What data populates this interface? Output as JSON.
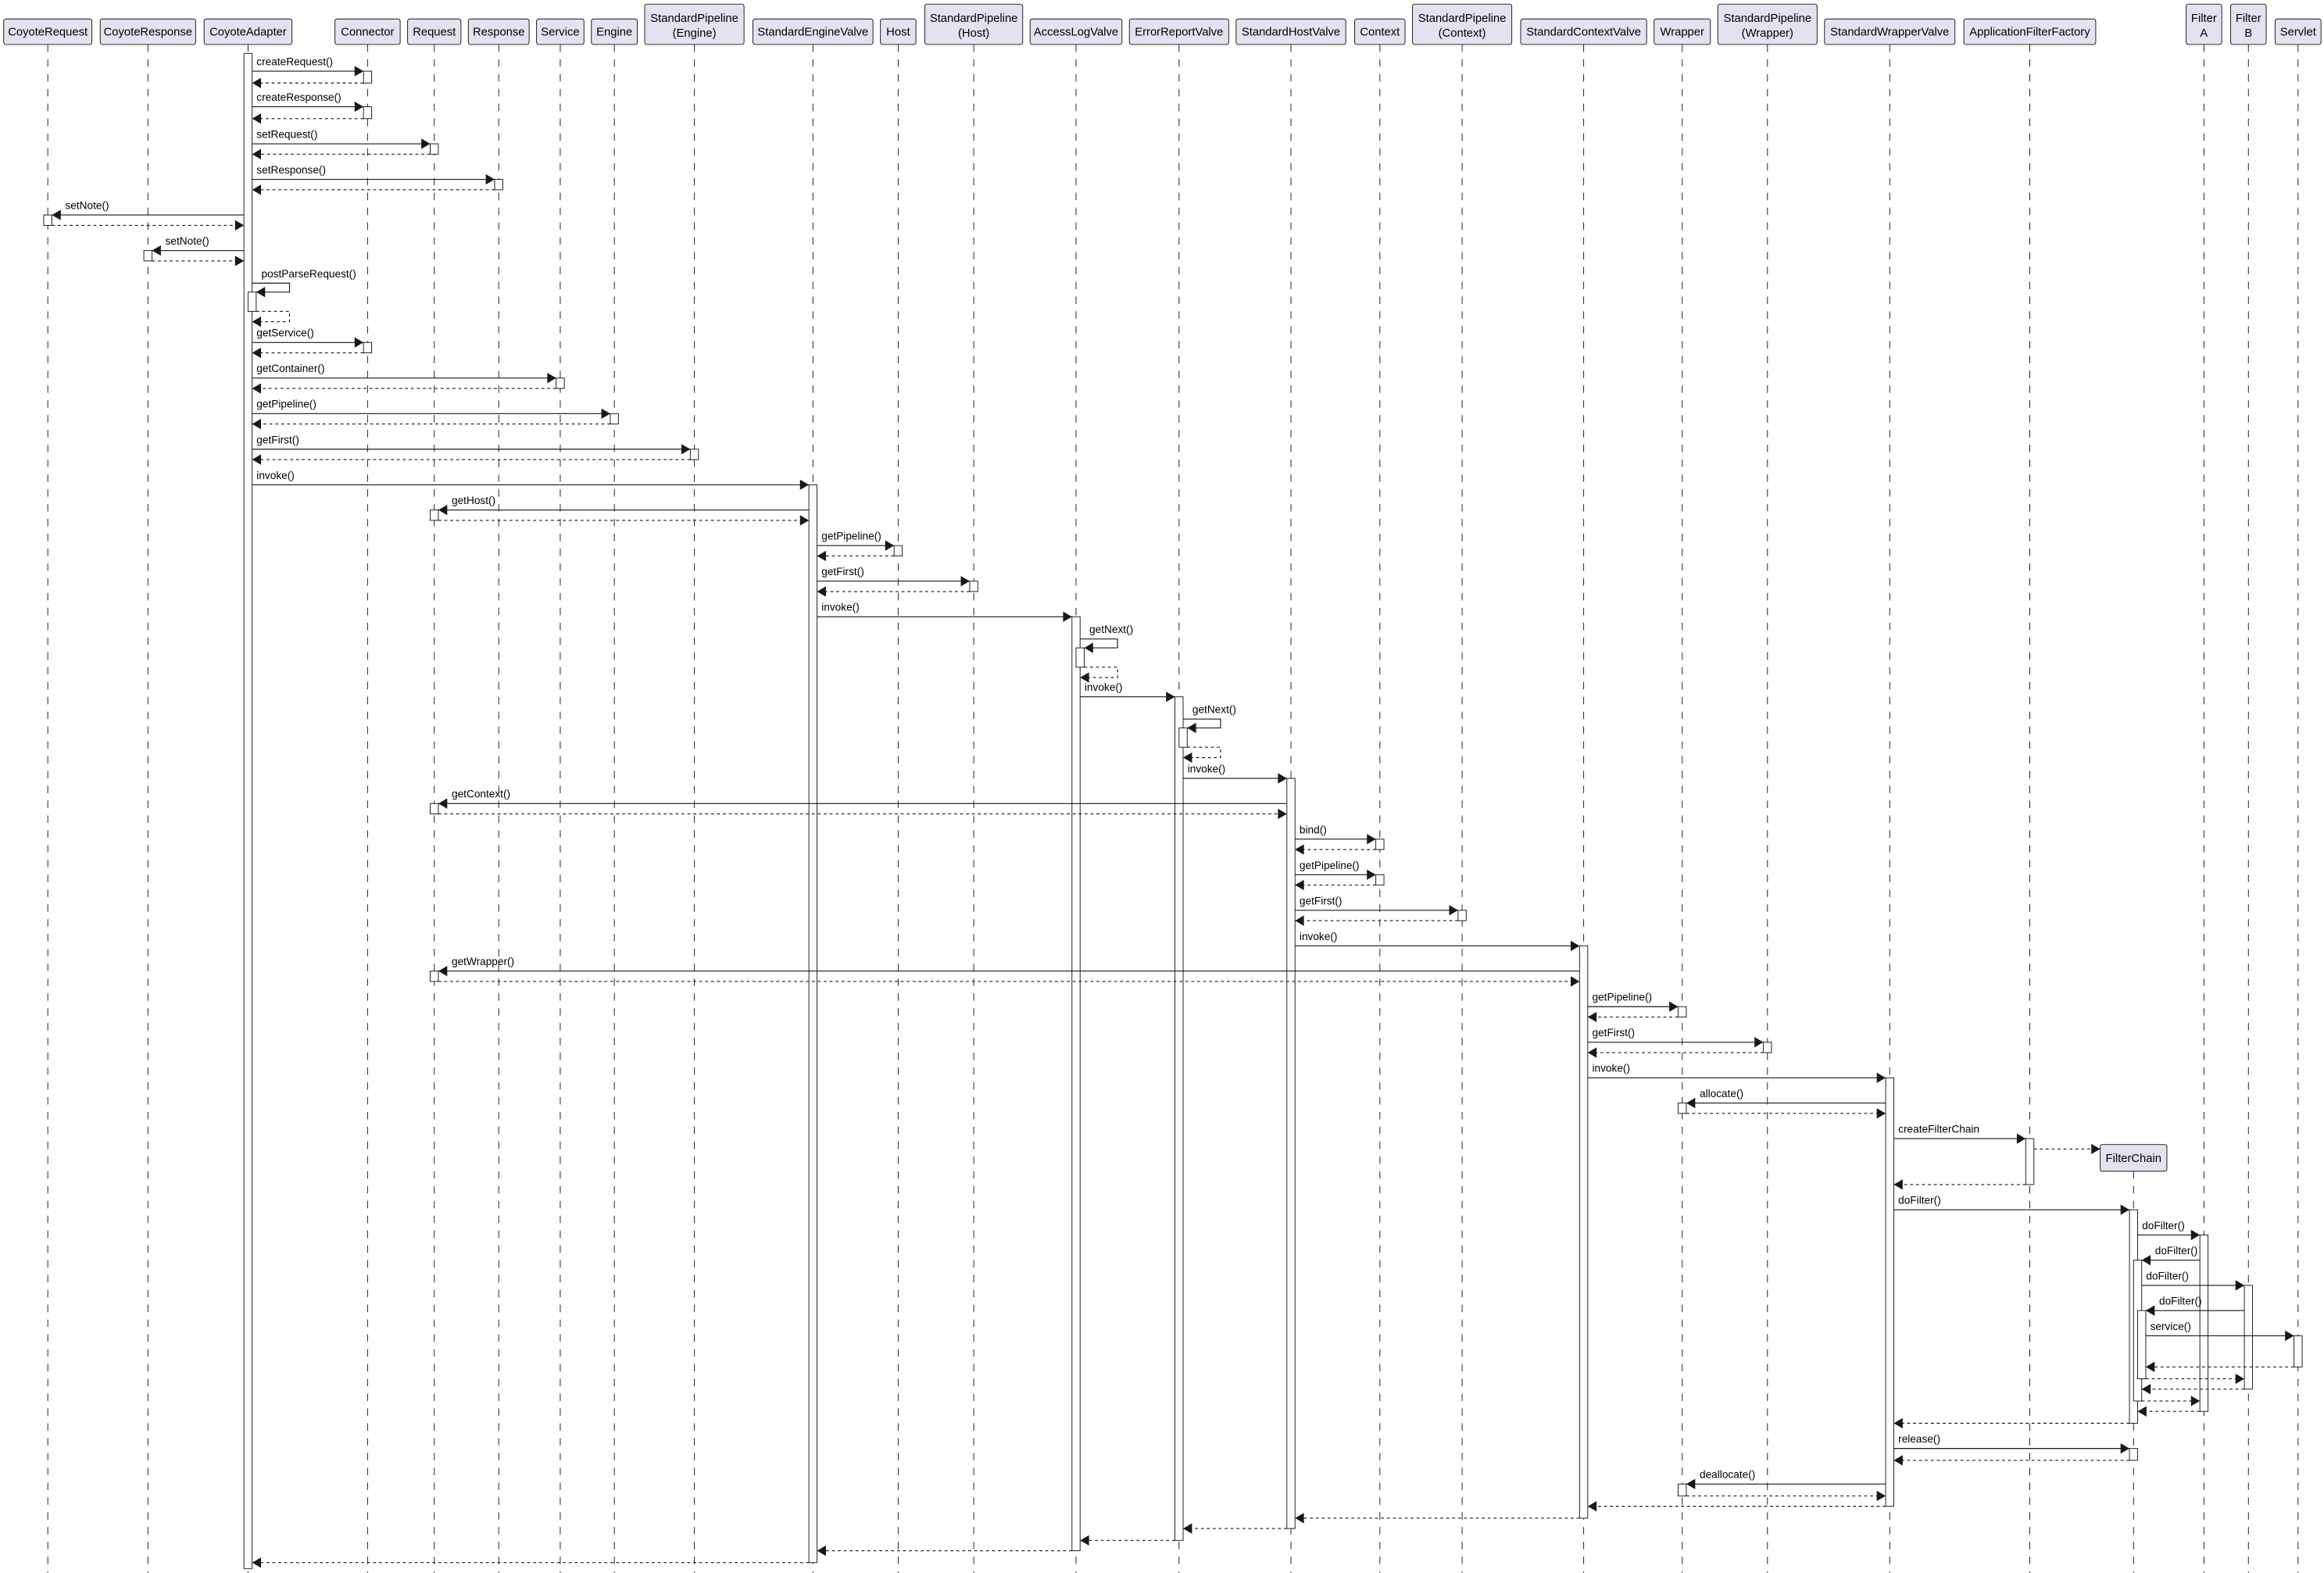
{
  "diagram_type": "sequence",
  "colors": {
    "participant_fill": "#E2E2F0",
    "line": "#181818",
    "background": "#FFFFFF"
  },
  "participants": [
    {
      "lines": [
        "CoyoteRequest"
      ]
    },
    {
      "lines": [
        "CoyoteResponse"
      ]
    },
    {
      "lines": [
        "CoyoteAdapter"
      ]
    },
    {
      "lines": [
        "Connector"
      ]
    },
    {
      "lines": [
        "Request"
      ]
    },
    {
      "lines": [
        "Response"
      ]
    },
    {
      "lines": [
        "Service"
      ]
    },
    {
      "lines": [
        "Engine"
      ]
    },
    {
      "lines": [
        "StandardPipeline",
        "(Engine)"
      ]
    },
    {
      "lines": [
        "StandardEngineValve"
      ]
    },
    {
      "lines": [
        "Host"
      ]
    },
    {
      "lines": [
        "StandardPipeline",
        "(Host)"
      ]
    },
    {
      "lines": [
        "AccessLogValve"
      ]
    },
    {
      "lines": [
        "ErrorReportValve"
      ]
    },
    {
      "lines": [
        "StandardHostValve"
      ]
    },
    {
      "lines": [
        "Context"
      ]
    },
    {
      "lines": [
        "StandardPipeline",
        "(Context)"
      ]
    },
    {
      "lines": [
        "StandardContextValve"
      ]
    },
    {
      "lines": [
        "Wrapper"
      ]
    },
    {
      "lines": [
        "StandardPipeline",
        "(Wrapper)"
      ]
    },
    {
      "lines": [
        "StandardWrapperValve"
      ]
    },
    {
      "lines": [
        "ApplicationFilterFactory"
      ]
    },
    {
      "lines": [
        "FilterChain"
      ],
      "created": true
    },
    {
      "lines": [
        "Filter",
        "A"
      ]
    },
    {
      "lines": [
        "Filter",
        "B"
      ]
    },
    {
      "lines": [
        "Servlet"
      ]
    }
  ],
  "messages": [
    {
      "type": "call",
      "from": 2,
      "to": 3,
      "label": "createRequest()"
    },
    {
      "type": "return",
      "from": 3,
      "to": 2
    },
    {
      "type": "call",
      "from": 2,
      "to": 3,
      "label": "createResponse()"
    },
    {
      "type": "return",
      "from": 3,
      "to": 2
    },
    {
      "type": "call",
      "from": 2,
      "to": 4,
      "label": "setRequest()"
    },
    {
      "type": "return",
      "from": 4,
      "to": 2
    },
    {
      "type": "call",
      "from": 2,
      "to": 5,
      "label": "setResponse()"
    },
    {
      "type": "return",
      "from": 5,
      "to": 2
    },
    {
      "type": "call",
      "from": 2,
      "to": 0,
      "label": "setNote()"
    },
    {
      "type": "return",
      "from": 0,
      "to": 2
    },
    {
      "type": "call",
      "from": 2,
      "to": 1,
      "label": "setNote()"
    },
    {
      "type": "return",
      "from": 1,
      "to": 2
    },
    {
      "type": "self",
      "from": 2,
      "to": 2,
      "label": "postParseRequest()"
    },
    {
      "type": "self-return",
      "from": 2,
      "to": 2
    },
    {
      "type": "call",
      "from": 2,
      "to": 3,
      "label": "getService()"
    },
    {
      "type": "return",
      "from": 3,
      "to": 2
    },
    {
      "type": "call",
      "from": 2,
      "to": 6,
      "label": "getContainer()"
    },
    {
      "type": "return",
      "from": 6,
      "to": 2
    },
    {
      "type": "call",
      "from": 2,
      "to": 7,
      "label": "getPipeline()"
    },
    {
      "type": "return",
      "from": 7,
      "to": 2
    },
    {
      "type": "call",
      "from": 2,
      "to": 8,
      "label": "getFirst()"
    },
    {
      "type": "return",
      "from": 8,
      "to": 2
    },
    {
      "type": "call",
      "from": 2,
      "to": 9,
      "label": "invoke()"
    },
    {
      "type": "call",
      "from": 9,
      "to": 4,
      "label": "getHost()"
    },
    {
      "type": "return",
      "from": 4,
      "to": 9
    },
    {
      "type": "call",
      "from": 9,
      "to": 10,
      "label": "getPipeline()"
    },
    {
      "type": "return",
      "from": 10,
      "to": 9
    },
    {
      "type": "call",
      "from": 9,
      "to": 11,
      "label": "getFirst()"
    },
    {
      "type": "return",
      "from": 11,
      "to": 9
    },
    {
      "type": "call",
      "from": 9,
      "to": 12,
      "label": "invoke()"
    },
    {
      "type": "self",
      "from": 12,
      "to": 12,
      "label": "getNext()"
    },
    {
      "type": "self-return",
      "from": 12,
      "to": 12
    },
    {
      "type": "call",
      "from": 12,
      "to": 13,
      "label": "invoke()"
    },
    {
      "type": "self",
      "from": 13,
      "to": 13,
      "label": "getNext()"
    },
    {
      "type": "self-return",
      "from": 13,
      "to": 13
    },
    {
      "type": "call",
      "from": 13,
      "to": 14,
      "label": "invoke()"
    },
    {
      "type": "call",
      "from": 14,
      "to": 4,
      "label": "getContext()"
    },
    {
      "type": "return",
      "from": 4,
      "to": 14
    },
    {
      "type": "call",
      "from": 14,
      "to": 15,
      "label": "bind()"
    },
    {
      "type": "return",
      "from": 15,
      "to": 14
    },
    {
      "type": "call",
      "from": 14,
      "to": 15,
      "label": "getPipeline()"
    },
    {
      "type": "return",
      "from": 15,
      "to": 14
    },
    {
      "type": "call",
      "from": 14,
      "to": 16,
      "label": "getFirst()"
    },
    {
      "type": "return",
      "from": 16,
      "to": 14
    },
    {
      "type": "call",
      "from": 14,
      "to": 17,
      "label": "invoke()"
    },
    {
      "type": "call",
      "from": 17,
      "to": 4,
      "label": "getWrapper()"
    },
    {
      "type": "return",
      "from": 4,
      "to": 17
    },
    {
      "type": "call",
      "from": 17,
      "to": 18,
      "label": "getPipeline()"
    },
    {
      "type": "return",
      "from": 18,
      "to": 17
    },
    {
      "type": "call",
      "from": 17,
      "to": 19,
      "label": "getFirst()"
    },
    {
      "type": "return",
      "from": 19,
      "to": 17
    },
    {
      "type": "call",
      "from": 17,
      "to": 20,
      "label": "invoke()"
    },
    {
      "type": "call",
      "from": 20,
      "to": 18,
      "label": "allocate()"
    },
    {
      "type": "return",
      "from": 18,
      "to": 20
    },
    {
      "type": "call",
      "from": 20,
      "to": 21,
      "label": "createFilterChain"
    },
    {
      "type": "create",
      "from": 21,
      "to": 22
    },
    {
      "type": "return",
      "from": 21,
      "to": 20
    },
    {
      "type": "call",
      "from": 20,
      "to": 22,
      "label": "doFilter()"
    },
    {
      "type": "call",
      "from": 22,
      "to": 23,
      "label": "doFilter()"
    },
    {
      "type": "call",
      "from": 23,
      "to": 22,
      "label": "doFilter()"
    },
    {
      "type": "call",
      "from": 22,
      "to": 24,
      "label": "doFilter()"
    },
    {
      "type": "call",
      "from": 24,
      "to": 22,
      "label": "doFilter()"
    },
    {
      "type": "call",
      "from": 22,
      "to": 25,
      "label": "service()"
    },
    {
      "type": "return",
      "from": 25,
      "to": 22
    },
    {
      "type": "return",
      "from": 22,
      "to": 24
    },
    {
      "type": "return",
      "from": 24,
      "to": 22
    },
    {
      "type": "return",
      "from": 22,
      "to": 23
    },
    {
      "type": "return",
      "from": 23,
      "to": 22
    },
    {
      "type": "return",
      "from": 22,
      "to": 20
    },
    {
      "type": "call",
      "from": 20,
      "to": 22,
      "label": "release()"
    },
    {
      "type": "return",
      "from": 22,
      "to": 20
    },
    {
      "type": "call",
      "from": 20,
      "to": 18,
      "label": "deallocate()"
    },
    {
      "type": "return",
      "from": 18,
      "to": 20
    },
    {
      "type": "return",
      "from": 20,
      "to": 17
    },
    {
      "type": "return",
      "from": 17,
      "to": 14
    },
    {
      "type": "return",
      "from": 14,
      "to": 13
    },
    {
      "type": "return",
      "from": 13,
      "to": 12
    },
    {
      "type": "return",
      "from": 12,
      "to": 9
    },
    {
      "type": "return",
      "from": 9,
      "to": 2
    }
  ]
}
